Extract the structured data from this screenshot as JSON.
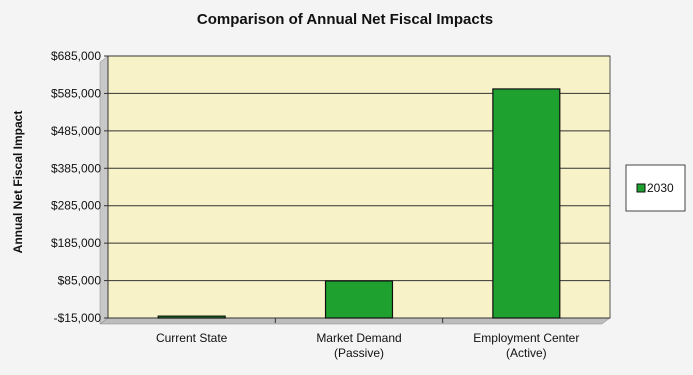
{
  "chart_data": {
    "type": "bar",
    "title": "Comparison of Annual Net Fiscal Impacts",
    "xlabel": "",
    "ylabel": "Annual Net Fiscal Impact",
    "categories": [
      [
        "Current State"
      ],
      [
        "Market Demand",
        "(Passive)"
      ],
      [
        "Employment Center",
        "(Active)"
      ]
    ],
    "series": [
      {
        "name": "2030",
        "values": [
          -10000,
          84000,
          597000
        ]
      }
    ],
    "yticks": [
      {
        "value": -15000,
        "label": "-$15,000"
      },
      {
        "value": 85000,
        "label": "$85,000"
      },
      {
        "value": 185000,
        "label": "$185,000"
      },
      {
        "value": 285000,
        "label": "$285,000"
      },
      {
        "value": 385000,
        "label": "$385,000"
      },
      {
        "value": 485000,
        "label": "$485,000"
      },
      {
        "value": 585000,
        "label": "$585,000"
      },
      {
        "value": 685000,
        "label": "$685,000"
      }
    ],
    "ylim": [
      -15000,
      685000
    ],
    "grid": true,
    "legend_position": "right",
    "colors": {
      "bar": "#1fa12f",
      "bar_stroke": "#111111",
      "plot_bg": "#f7f2c8",
      "grid": "#333333",
      "page_bg": "#f4f4f4"
    }
  }
}
